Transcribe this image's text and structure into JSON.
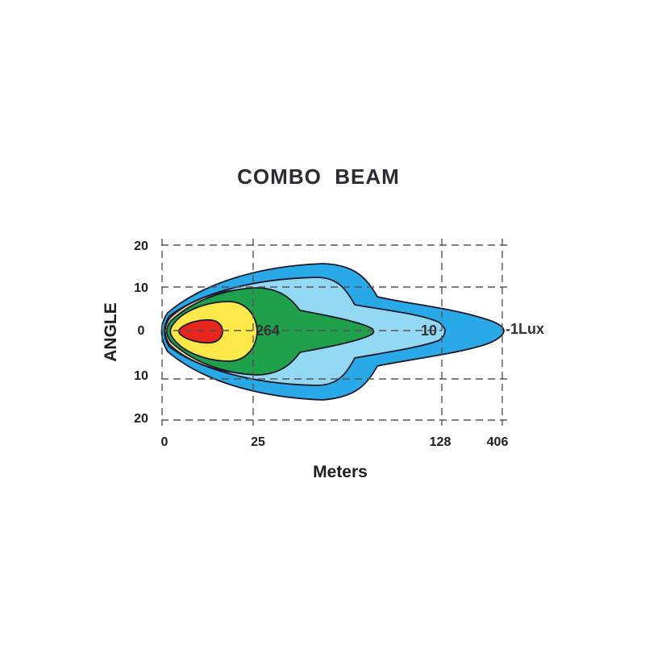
{
  "title": "COMBO  BEAM",
  "x_axis": {
    "label": "Meters",
    "ticks": [
      "0",
      "25",
      "128",
      "406"
    ]
  },
  "y_axis": {
    "label": "ANGLE",
    "ticks_top": [
      "20",
      "10"
    ],
    "center": "0",
    "ticks_bottom": [
      "10",
      "20"
    ]
  },
  "zone_labels": {
    "inner": "264",
    "mid": "10",
    "outer": "-1Lux"
  },
  "zone_colors": {
    "outer": "#29a9e8",
    "light_blue": "#93d9f3",
    "tan": "#e9d8a0",
    "green": "#1fa04a",
    "yellow": "#ffe94a",
    "red": "#e8261d"
  }
}
